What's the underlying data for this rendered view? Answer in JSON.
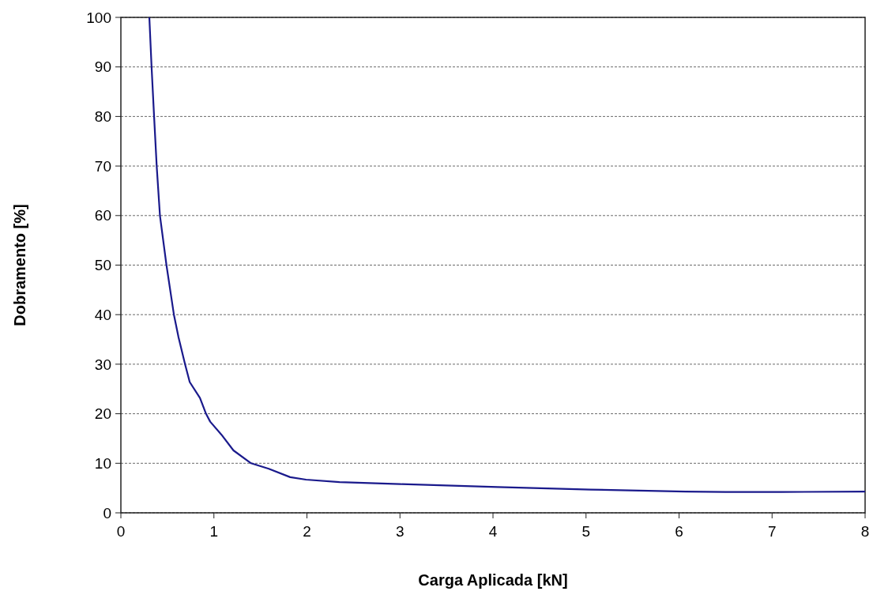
{
  "chart_data": {
    "type": "line",
    "xlabel": "Carga Aplicada [kN]",
    "ylabel": "Dobramento [%]",
    "xlim": [
      0,
      8
    ],
    "xticks": [
      0,
      1,
      2,
      3,
      4,
      5,
      6,
      7,
      8
    ],
    "ylim": [
      0,
      100
    ],
    "yticks": [
      0,
      10,
      20,
      30,
      40,
      50,
      60,
      70,
      80,
      90,
      100
    ],
    "grid": "y",
    "marker": "none",
    "line_style": "solid",
    "series": [
      {
        "color": "#1a1a8c",
        "x": [
          0.306,
          0.33,
          0.357,
          0.385,
          0.42,
          0.49,
          0.57,
          0.62,
          0.69,
          0.74,
          0.85,
          0.915,
          0.96,
          1.08,
          1.21,
          1.4,
          1.59,
          1.82,
          1.99,
          2.35,
          3.0,
          4.05,
          5.05,
          6.07,
          6.5,
          7.1,
          8.0
        ],
        "values": [
          100,
          90,
          80,
          70,
          60,
          50,
          40,
          35.4,
          30,
          26.4,
          23.2,
          20,
          18.4,
          15.8,
          12.6,
          10,
          8.9,
          7.2,
          6.7,
          6.2,
          5.8,
          5.2,
          4.7,
          4.3,
          4.2,
          4.2,
          4.3
        ]
      }
    ]
  }
}
